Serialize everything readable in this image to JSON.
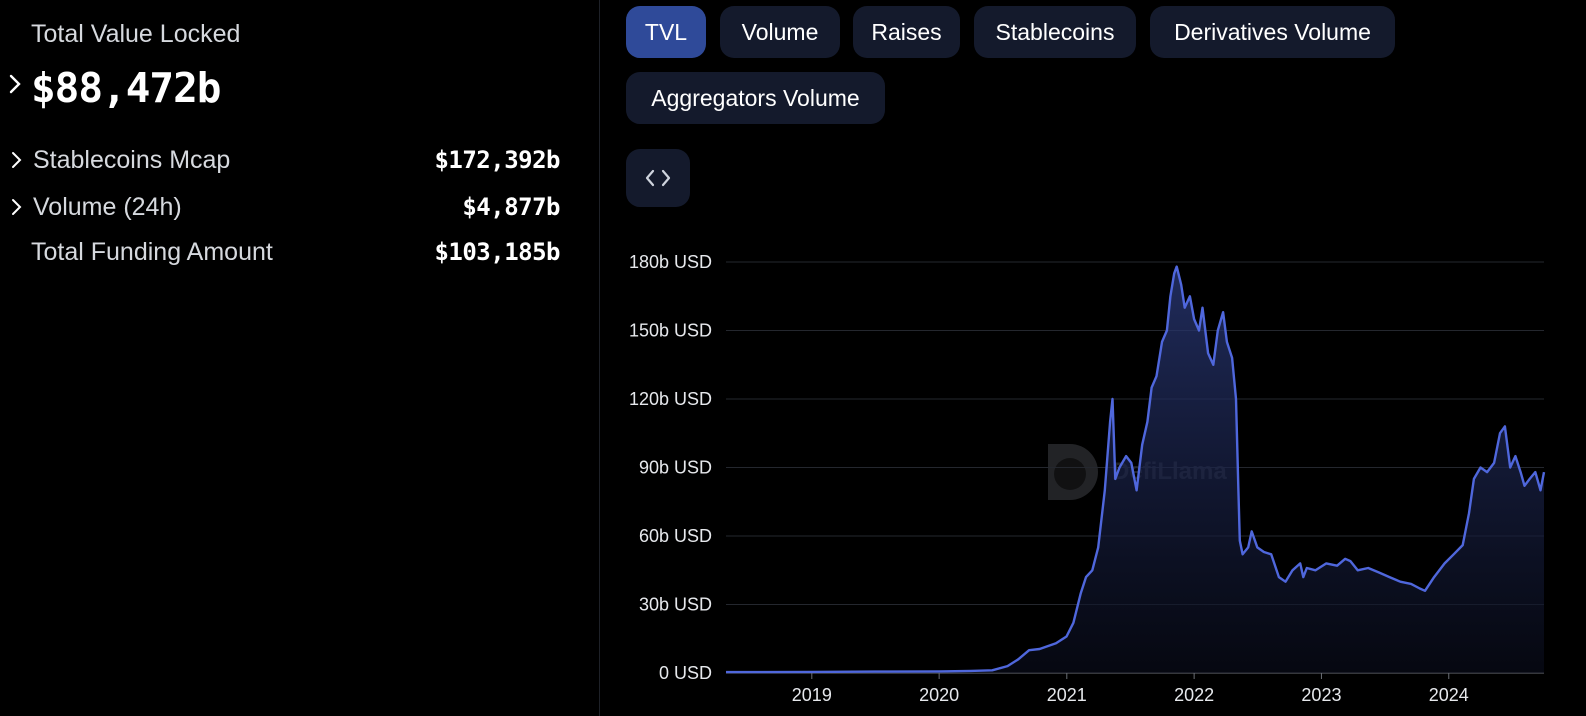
{
  "summary": {
    "tvl_label": "Total Value Locked",
    "tvl_value": "$88,472b",
    "stats": [
      {
        "label": "Stablecoins Mcap",
        "value": "$172,392b",
        "expandable": true
      },
      {
        "label": "Volume (24h)",
        "value": "$4,877b",
        "expandable": true
      },
      {
        "label": "Total Funding Amount",
        "value": "$103,185b",
        "expandable": false
      }
    ]
  },
  "tabs": [
    "TVL",
    "Volume",
    "Raises",
    "Stablecoins",
    "Derivatives Volume",
    "Aggregators Volume"
  ],
  "active_tab": "TVL",
  "embed_icon": "code-brackets-icon",
  "watermark": "DefiLlama",
  "colors": {
    "line": "#4f67dc",
    "accent_tab": "#2f4a99",
    "tab_bg": "#141a2c"
  },
  "chart_data": {
    "type": "area",
    "ylabel_unit": "USD",
    "yticks": [
      "0 USD",
      "30b USD",
      "60b USD",
      "90b USD",
      "120b USD",
      "150b USD",
      "180b USD"
    ],
    "xticks": [
      "2019",
      "2020",
      "2021",
      "2022",
      "2023",
      "2024"
    ],
    "ylim": [
      0,
      180
    ],
    "xlim": [
      "2018-04-30",
      "2024-09-30"
    ],
    "grid": true,
    "series": [
      {
        "values_unit": "billion USD",
        "x": [
          "2018-04-30",
          "2019-01-01",
          "2019-07-01",
          "2020-01-01",
          "2020-04-01",
          "2020-06-01",
          "2020-07-15",
          "2020-08-15",
          "2020-09-15",
          "2020-10-15",
          "2020-12-01",
          "2020-12-31",
          "2021-01-20",
          "2021-02-10",
          "2021-02-25",
          "2021-03-15",
          "2021-04-01",
          "2021-04-20",
          "2021-05-05",
          "2021-05-12",
          "2021-05-20",
          "2021-06-01",
          "2021-06-20",
          "2021-07-05",
          "2021-07-20",
          "2021-08-05",
          "2021-08-20",
          "2021-09-01",
          "2021-09-15",
          "2021-10-01",
          "2021-10-15",
          "2021-10-25",
          "2021-11-05",
          "2021-11-12",
          "2021-11-25",
          "2021-12-05",
          "2021-12-20",
          "2022-01-01",
          "2022-01-15",
          "2022-01-25",
          "2022-02-10",
          "2022-02-25",
          "2022-03-10",
          "2022-03-25",
          "2022-04-05",
          "2022-04-20",
          "2022-05-01",
          "2022-05-08",
          "2022-05-12",
          "2022-05-20",
          "2022-06-05",
          "2022-06-15",
          "2022-07-01",
          "2022-07-20",
          "2022-08-10",
          "2022-09-01",
          "2022-09-20",
          "2022-10-10",
          "2022-11-01",
          "2022-11-10",
          "2022-11-20",
          "2022-12-15",
          "2023-01-15",
          "2023-02-15",
          "2023-03-10",
          "2023-03-25",
          "2023-04-15",
          "2023-05-15",
          "2023-06-15",
          "2023-07-15",
          "2023-08-15",
          "2023-09-15",
          "2023-10-10",
          "2023-10-25",
          "2023-11-20",
          "2023-12-20",
          "2024-01-15",
          "2024-02-10",
          "2024-02-28",
          "2024-03-13",
          "2024-04-01",
          "2024-04-20",
          "2024-05-10",
          "2024-05-27",
          "2024-06-10",
          "2024-06-25",
          "2024-07-10",
          "2024-07-25",
          "2024-08-05",
          "2024-08-20",
          "2024-09-05",
          "2024-09-20",
          "2024-09-30"
        ],
        "values": [
          0.4,
          0.5,
          0.6,
          0.7,
          0.9,
          1.2,
          3,
          6,
          10,
          10.5,
          13,
          16,
          22,
          35,
          42,
          45,
          55,
          80,
          110,
          120,
          85,
          90,
          95,
          92,
          80,
          100,
          110,
          125,
          130,
          145,
          150,
          165,
          175,
          178,
          170,
          160,
          165,
          155,
          150,
          160,
          140,
          135,
          150,
          158,
          145,
          138,
          120,
          80,
          58,
          52,
          55,
          62,
          55,
          53,
          52,
          42,
          40,
          45,
          48,
          42,
          46,
          45,
          48,
          47,
          50,
          49,
          45,
          46,
          44,
          42,
          40,
          39,
          37,
          36,
          42,
          48,
          52,
          56,
          70,
          85,
          90,
          88,
          92,
          105,
          108,
          90,
          95,
          88,
          82,
          85,
          88,
          80,
          88
        ]
      }
    ]
  }
}
